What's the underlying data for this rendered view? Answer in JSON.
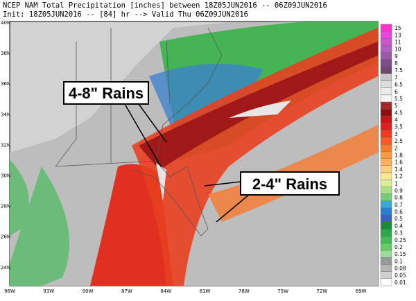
{
  "header": {
    "line1": "NCEP NAM Total Precipitation [inches] between 18Z05JUN2016 -- 06Z09JUN2016",
    "line2": "Init: 18Z05JUN2016 -- [84] hr --> Valid Thu 06Z09JUN2016"
  },
  "map": {
    "lat_labels": [
      "40N",
      "38N",
      "36N",
      "34N",
      "32N",
      "30N",
      "28N",
      "26N",
      "24N"
    ],
    "lon_labels": [
      "96W",
      "93W",
      "90W",
      "87W",
      "84W",
      "81W",
      "78W",
      "75W",
      "72W",
      "69W"
    ],
    "callouts": [
      "4-8\" Rains",
      "2-4\" Rains"
    ]
  },
  "colorbar": {
    "levels": [
      15,
      13,
      11,
      10,
      9,
      8,
      7.5,
      7,
      6.5,
      6,
      5.5,
      5,
      4.5,
      4,
      3.5,
      3,
      2.5,
      2,
      1.8,
      1.6,
      1.4,
      1.2,
      1,
      0.9,
      0.8,
      0.7,
      0.6,
      0.5,
      0.4,
      0.3,
      0.25,
      0.2,
      0.15,
      0.1,
      0.08,
      0.05,
      0.01
    ],
    "colors": [
      "#ff33cc",
      "#ee44dd",
      "#cc55cc",
      "#b060c0",
      "#9a5aa8",
      "#7d4d8a",
      "#6b4a6b",
      "#c8c8c8",
      "#dcdcdc",
      "#ebebeb",
      "#f4f4f4",
      "#a52a2a",
      "#8b1010",
      "#c81414",
      "#e02020",
      "#f03c1e",
      "#f55a28",
      "#f77a30",
      "#f99a40",
      "#ffb060",
      "#ffd080",
      "#f8e890",
      "#ddee99",
      "#aade88",
      "#77cc77",
      "#3aa8d8",
      "#2a7fd0",
      "#3a5fc8",
      "#1d8a3a",
      "#2aa84a",
      "#44bb55",
      "#66cc66",
      "#99dd99",
      "#9a9a9a",
      "#b5b5b5",
      "#d0d0d0",
      "#ffffff"
    ]
  }
}
